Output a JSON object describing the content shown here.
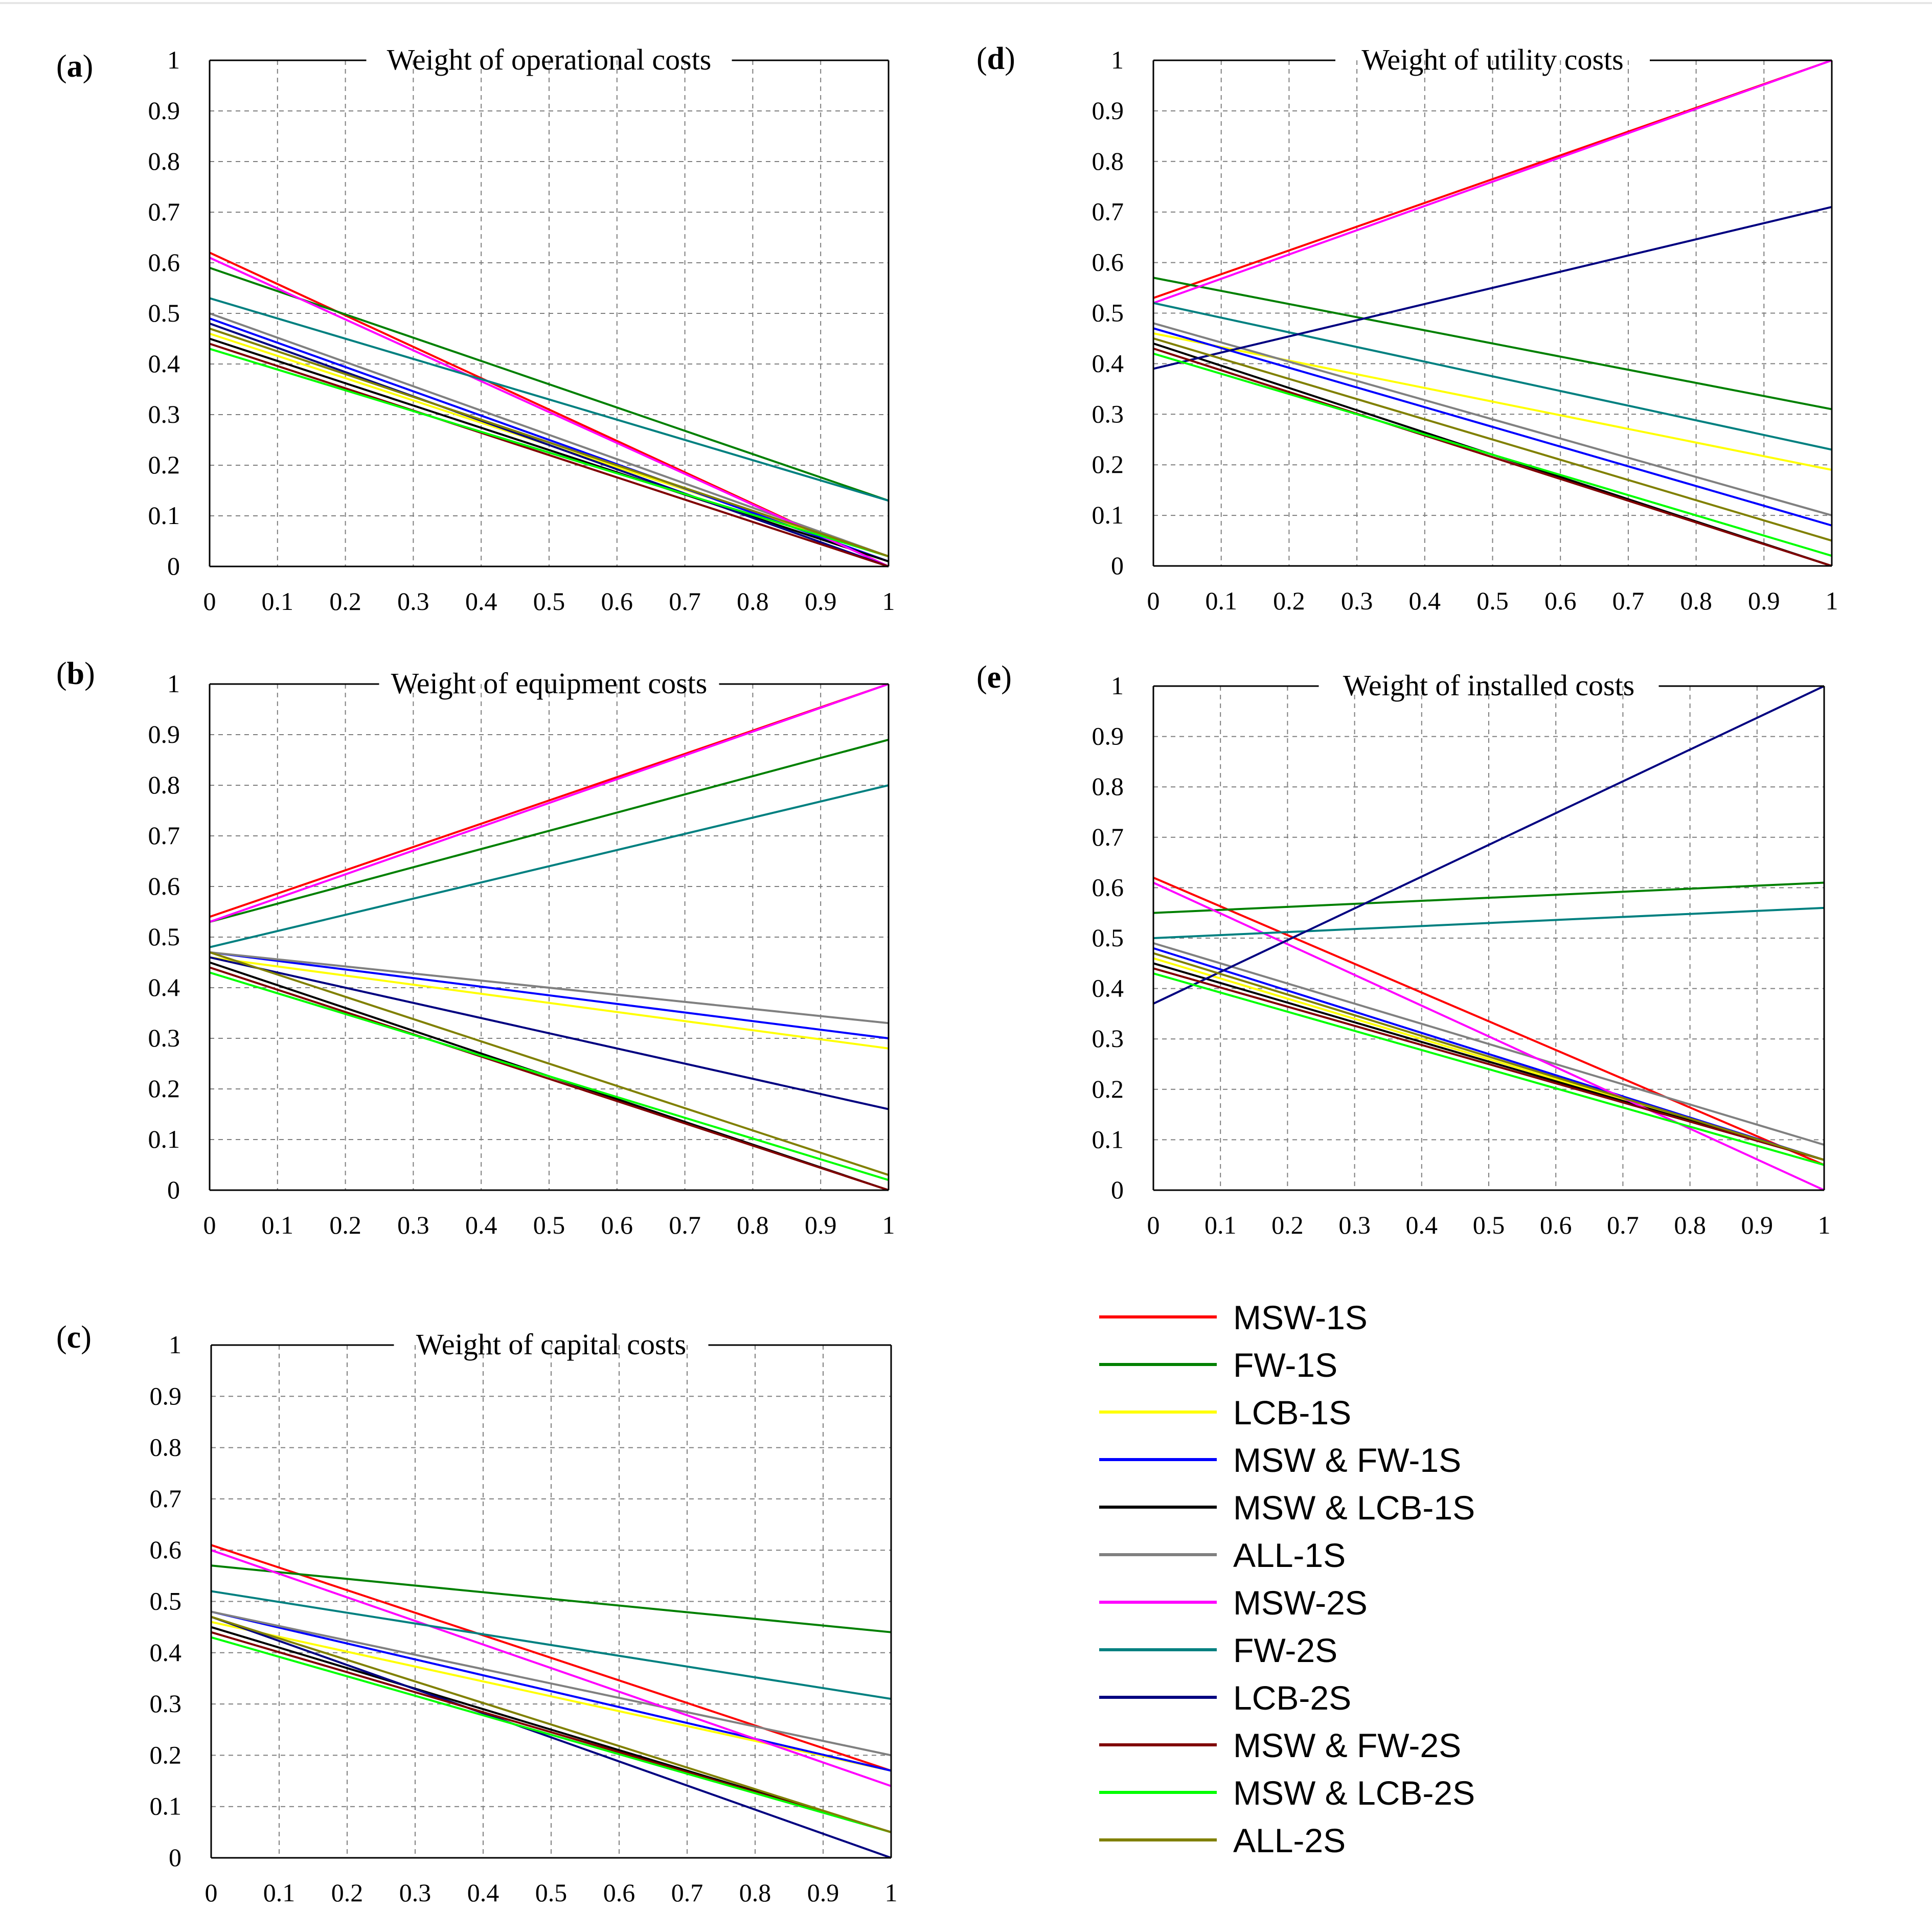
{
  "series": [
    {
      "name": "MSW-1S",
      "color": "#ff0000"
    },
    {
      "name": "FW-1S",
      "color": "#008000"
    },
    {
      "name": "LCB-1S",
      "color": "#ffff00"
    },
    {
      "name": "MSW & FW-1S",
      "color": "#0000ff"
    },
    {
      "name": "MSW & LCB-1S",
      "color": "#000000"
    },
    {
      "name": "ALL-1S",
      "color": "#808080"
    },
    {
      "name": "MSW-2S",
      "color": "#ff00ff"
    },
    {
      "name": "FW-2S",
      "color": "#008080"
    },
    {
      "name": "LCB-2S",
      "color": "#000080"
    },
    {
      "name": "MSW & FW-2S",
      "color": "#800000"
    },
    {
      "name": "MSW & LCB-2S",
      "color": "#00ff00"
    },
    {
      "name": "ALL-2S",
      "color": "#808000"
    }
  ],
  "chart_data": [
    {
      "type": "line",
      "panel": "a",
      "title": "Weight of operational costs",
      "xlim": [
        0,
        1
      ],
      "ylim": [
        0,
        1
      ],
      "xticks": [
        "0",
        "0.1",
        "0.2",
        "0.3",
        "0.4",
        "0.5",
        "0.6",
        "0.7",
        "0.8",
        "0.9",
        "1"
      ],
      "yticks": [
        "0",
        "0.1",
        "0.2",
        "0.3",
        "0.4",
        "0.5",
        "0.6",
        "0.7",
        "0.8",
        "0.9",
        "1"
      ],
      "lines": [
        {
          "series": "MSW-1S",
          "y0": 0.62,
          "y1": 0.0
        },
        {
          "series": "FW-1S",
          "y0": 0.59,
          "y1": 0.13
        },
        {
          "series": "LCB-1S",
          "y0": 0.46,
          "y1": 0.02
        },
        {
          "series": "MSW & FW-1S",
          "y0": 0.49,
          "y1": 0.01
        },
        {
          "series": "MSW & LCB-1S",
          "y0": 0.45,
          "y1": 0.01
        },
        {
          "series": "ALL-1S",
          "y0": 0.5,
          "y1": 0.02
        },
        {
          "series": "MSW-2S",
          "y0": 0.61,
          "y1": 0.0
        },
        {
          "series": "FW-2S",
          "y0": 0.53,
          "y1": 0.13
        },
        {
          "series": "LCB-2S",
          "y0": 0.48,
          "y1": 0.0
        },
        {
          "series": "MSW & FW-2S",
          "y0": 0.44,
          "y1": 0.0
        },
        {
          "series": "MSW & LCB-2S",
          "y0": 0.43,
          "y1": 0.02
        },
        {
          "series": "ALL-2S",
          "y0": 0.47,
          "y1": 0.02
        }
      ]
    },
    {
      "type": "line",
      "panel": "b",
      "title": "Weight of equipment costs",
      "xlim": [
        0,
        1
      ],
      "ylim": [
        0,
        1
      ],
      "xticks": [
        "0",
        "0.1",
        "0.2",
        "0.3",
        "0.4",
        "0.5",
        "0.6",
        "0.7",
        "0.8",
        "0.9",
        "1"
      ],
      "yticks": [
        "0",
        "0.1",
        "0.2",
        "0.3",
        "0.4",
        "0.5",
        "0.6",
        "0.7",
        "0.8",
        "0.9",
        "1"
      ],
      "lines": [
        {
          "series": "MSW-1S",
          "y0": 0.54,
          "y1": 1.0
        },
        {
          "series": "FW-1S",
          "y0": 0.53,
          "y1": 0.89
        },
        {
          "series": "LCB-1S",
          "y0": 0.46,
          "y1": 0.28
        },
        {
          "series": "MSW & FW-1S",
          "y0": 0.47,
          "y1": 0.3
        },
        {
          "series": "MSW & LCB-1S",
          "y0": 0.45,
          "y1": 0.0
        },
        {
          "series": "ALL-1S",
          "y0": 0.47,
          "y1": 0.33
        },
        {
          "series": "MSW-2S",
          "y0": 0.53,
          "y1": 1.0
        },
        {
          "series": "FW-2S",
          "y0": 0.48,
          "y1": 0.8
        },
        {
          "series": "LCB-2S",
          "y0": 0.46,
          "y1": 0.16
        },
        {
          "series": "MSW & FW-2S",
          "y0": 0.44,
          "y1": 0.0
        },
        {
          "series": "MSW & LCB-2S",
          "y0": 0.43,
          "y1": 0.02
        },
        {
          "series": "ALL-2S",
          "y0": 0.47,
          "y1": 0.03
        }
      ]
    },
    {
      "type": "line",
      "panel": "c",
      "title": "Weight of capital costs",
      "xlim": [
        0,
        1
      ],
      "ylim": [
        0,
        1
      ],
      "xticks": [
        "0",
        "0.1",
        "0.2",
        "0.3",
        "0.4",
        "0.5",
        "0.6",
        "0.7",
        "0.8",
        "0.9",
        "1"
      ],
      "yticks": [
        "0",
        "0.1",
        "0.2",
        "0.3",
        "0.4",
        "0.5",
        "0.6",
        "0.7",
        "0.8",
        "0.9",
        "1"
      ],
      "lines": [
        {
          "series": "MSW-1S",
          "y0": 0.61,
          "y1": 0.17
        },
        {
          "series": "FW-1S",
          "y0": 0.57,
          "y1": 0.44
        },
        {
          "series": "LCB-1S",
          "y0": 0.46,
          "y1": 0.17
        },
        {
          "series": "MSW & FW-1S",
          "y0": 0.48,
          "y1": 0.17
        },
        {
          "series": "MSW & LCB-1S",
          "y0": 0.45,
          "y1": 0.05
        },
        {
          "series": "ALL-1S",
          "y0": 0.48,
          "y1": 0.2
        },
        {
          "series": "MSW-2S",
          "y0": 0.6,
          "y1": 0.14
        },
        {
          "series": "FW-2S",
          "y0": 0.52,
          "y1": 0.31
        },
        {
          "series": "LCB-2S",
          "y0": 0.47,
          "y1": 0.0
        },
        {
          "series": "MSW & FW-2S",
          "y0": 0.44,
          "y1": 0.05
        },
        {
          "series": "MSW & LCB-2S",
          "y0": 0.43,
          "y1": 0.05
        },
        {
          "series": "ALL-2S",
          "y0": 0.47,
          "y1": 0.05
        }
      ]
    },
    {
      "type": "line",
      "panel": "d",
      "title": "Weight of utility costs",
      "xlim": [
        0,
        1
      ],
      "ylim": [
        0,
        1
      ],
      "xticks": [
        "0",
        "0.1",
        "0.2",
        "0.3",
        "0.4",
        "0.5",
        "0.6",
        "0.7",
        "0.8",
        "0.9",
        "1"
      ],
      "yticks": [
        "0",
        "0.1",
        "0.2",
        "0.3",
        "0.4",
        "0.5",
        "0.6",
        "0.7",
        "0.8",
        "0.9",
        "1"
      ],
      "lines": [
        {
          "series": "MSW-1S",
          "y0": 0.53,
          "y1": 1.0
        },
        {
          "series": "FW-1S",
          "y0": 0.57,
          "y1": 0.31
        },
        {
          "series": "LCB-1S",
          "y0": 0.46,
          "y1": 0.19
        },
        {
          "series": "MSW & FW-1S",
          "y0": 0.47,
          "y1": 0.08
        },
        {
          "series": "MSW & LCB-1S",
          "y0": 0.44,
          "y1": 0.0
        },
        {
          "series": "ALL-1S",
          "y0": 0.48,
          "y1": 0.1
        },
        {
          "series": "MSW-2S",
          "y0": 0.52,
          "y1": 1.0
        },
        {
          "series": "FW-2S",
          "y0": 0.52,
          "y1": 0.23
        },
        {
          "series": "LCB-2S",
          "y0": 0.39,
          "y1": 0.71
        },
        {
          "series": "MSW & FW-2S",
          "y0": 0.43,
          "y1": 0.0
        },
        {
          "series": "MSW & LCB-2S",
          "y0": 0.42,
          "y1": 0.02
        },
        {
          "series": "ALL-2S",
          "y0": 0.45,
          "y1": 0.05
        }
      ]
    },
    {
      "type": "line",
      "panel": "e",
      "title": "Weight of installed costs",
      "xlim": [
        0,
        1
      ],
      "ylim": [
        0,
        1
      ],
      "xticks": [
        "0",
        "0.1",
        "0.2",
        "0.3",
        "0.4",
        "0.5",
        "0.6",
        "0.7",
        "0.8",
        "0.9",
        "1"
      ],
      "yticks": [
        "0",
        "0.1",
        "0.2",
        "0.3",
        "0.4",
        "0.5",
        "0.6",
        "0.7",
        "0.8",
        "0.9",
        "1"
      ],
      "lines": [
        {
          "series": "MSW-1S",
          "y0": 0.62,
          "y1": 0.05
        },
        {
          "series": "FW-1S",
          "y0": 0.55,
          "y1": 0.61
        },
        {
          "series": "LCB-1S",
          "y0": 0.46,
          "y1": 0.06
        },
        {
          "series": "MSW & FW-1S",
          "y0": 0.48,
          "y1": 0.06
        },
        {
          "series": "MSW & LCB-1S",
          "y0": 0.45,
          "y1": 0.06
        },
        {
          "series": "ALL-1S",
          "y0": 0.49,
          "y1": 0.09
        },
        {
          "series": "MSW-2S",
          "y0": 0.61,
          "y1": 0.0
        },
        {
          "series": "FW-2S",
          "y0": 0.5,
          "y1": 0.56
        },
        {
          "series": "LCB-2S",
          "y0": 0.37,
          "y1": 1.0
        },
        {
          "series": "MSW & FW-2S",
          "y0": 0.44,
          "y1": 0.06
        },
        {
          "series": "MSW & LCB-2S",
          "y0": 0.43,
          "y1": 0.05
        },
        {
          "series": "ALL-2S",
          "y0": 0.47,
          "y1": 0.06
        }
      ]
    }
  ]
}
